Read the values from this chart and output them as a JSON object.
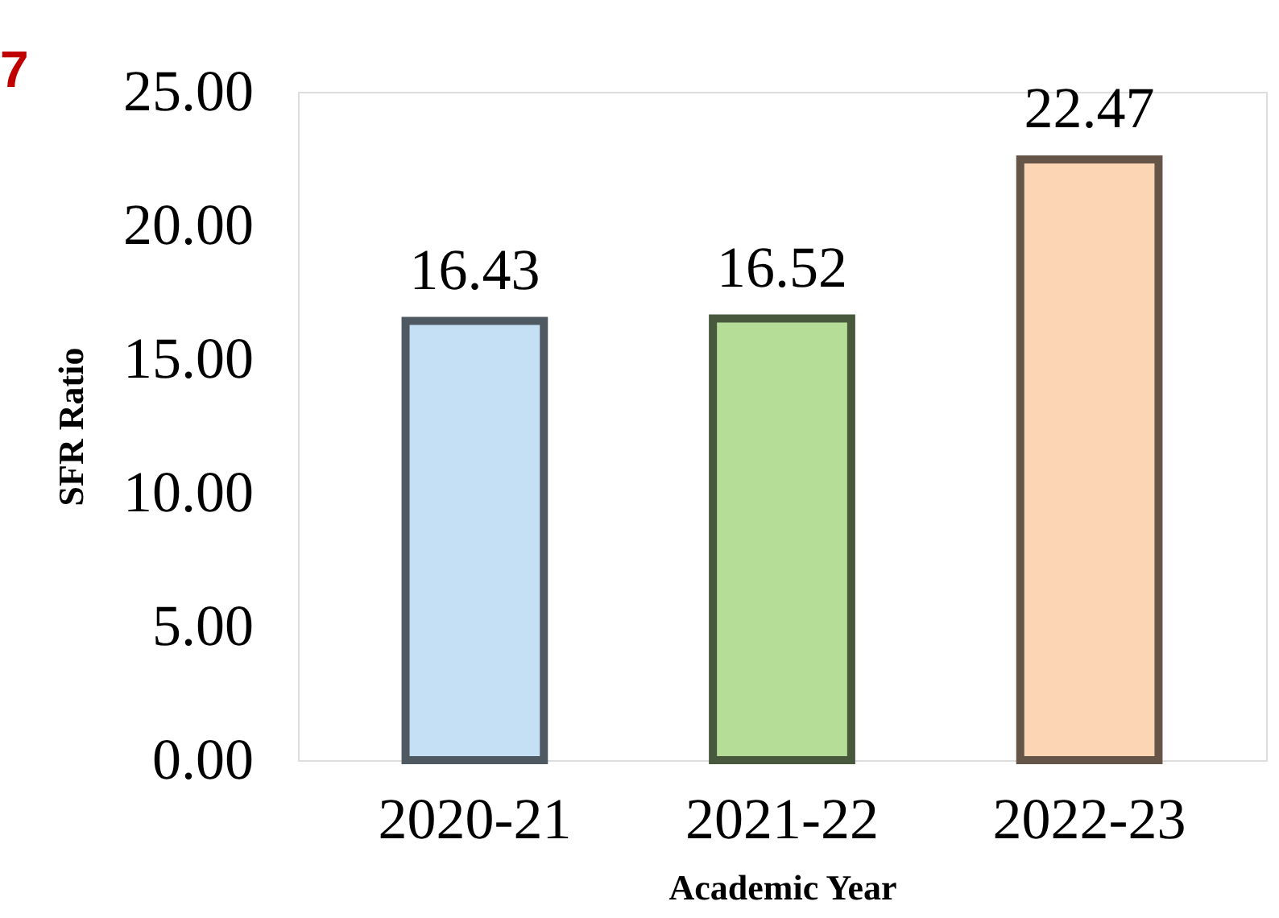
{
  "chart_data": {
    "type": "bar",
    "xlabel": "Academic Year",
    "ylabel": "SFR Ratio",
    "categories": [
      "2020-21",
      "2021-22",
      "2022-23"
    ],
    "values": [
      16.43,
      16.52,
      22.47
    ],
    "colors": [
      "#c5dff5",
      "#b5dd98",
      "#fcd5b5"
    ],
    "ylim": [
      0,
      25
    ],
    "yticks": [
      {
        "value": 0,
        "label": "0.00"
      },
      {
        "value": 5,
        "label": "5.00"
      },
      {
        "value": 10,
        "label": "10.00"
      },
      {
        "value": 15,
        "label": "15.00"
      },
      {
        "value": 20,
        "label": "20.00"
      },
      {
        "value": 25,
        "label": "25.00"
      }
    ],
    "data_labels": true,
    "grid": false,
    "annotations": [
      "7"
    ]
  }
}
